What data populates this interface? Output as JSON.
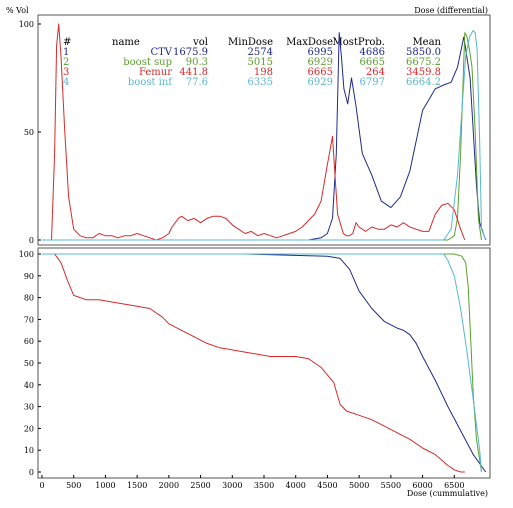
{
  "chart_data": [
    {
      "type": "line",
      "title": "Dose (differential)",
      "ylabel": "% Vol",
      "ylim": [
        0,
        100
      ],
      "xlim": [
        0,
        7000
      ],
      "yticks": [
        0,
        50,
        100
      ],
      "colors": {
        "CTV": "#1f2a8c",
        "boost sup": "#5aa02c",
        "Femur": "#d62a2a",
        "boost inf": "#58b8d0"
      },
      "table": {
        "headers": [
          "#",
          "name",
          "vol",
          "MinDose",
          "MaxDose",
          "MostProb.",
          "Mean"
        ],
        "rows": [
          {
            "num": "1",
            "name": "CTV",
            "vol": "1675.9",
            "min": "2574",
            "max": "6995",
            "mostprob": "4686",
            "mean": "5850.0",
            "color": "#1f2a8c"
          },
          {
            "num": "2",
            "name": "boost sup",
            "vol": "90.3",
            "min": "5015",
            "max": "6929",
            "mostprob": "6665",
            "mean": "6675.2",
            "color": "#5aa02c"
          },
          {
            "num": "3",
            "name": "Femur",
            "vol": "441.8",
            "min": "198",
            "max": "6665",
            "mostprob": "264",
            "mean": "3459.8",
            "color": "#d62a2a"
          },
          {
            "num": "4",
            "name": "boost inf",
            "vol": "77.6",
            "min": "6335",
            "max": "6929",
            "mostprob": "6797",
            "mean": "6664.2",
            "color": "#58b8d0"
          }
        ]
      },
      "series": [
        {
          "name": "CTV",
          "color": "#1f2a8c",
          "x": [
            2574,
            3000,
            4200,
            4400,
            4500,
            4580,
            4640,
            4686,
            4720,
            4760,
            4820,
            4880,
            4950,
            5050,
            5200,
            5350,
            5500,
            5650,
            5800,
            6000,
            6200,
            6350,
            6450,
            6550,
            6650,
            6750,
            6850,
            6900,
            6995
          ],
          "y": [
            0,
            0,
            0,
            1,
            3,
            10,
            40,
            96,
            85,
            70,
            63,
            75,
            62,
            40,
            30,
            18,
            15,
            20,
            32,
            60,
            70,
            72,
            73,
            80,
            94,
            75,
            25,
            8,
            0
          ]
        },
        {
          "name": "boost sup",
          "color": "#5aa02c",
          "x": [
            5015,
            6400,
            6500,
            6550,
            6600,
            6640,
            6665,
            6700,
            6740,
            6780,
            6830,
            6880,
            6929
          ],
          "y": [
            0,
            0,
            2,
            10,
            40,
            75,
            96,
            94,
            88,
            80,
            50,
            10,
            0
          ]
        },
        {
          "name": "Femur",
          "color": "#d62a2a",
          "x": [
            0,
            150,
            198,
            230,
            264,
            300,
            360,
            420,
            500,
            600,
            700,
            800,
            900,
            1000,
            1100,
            1200,
            1300,
            1400,
            1500,
            1600,
            1700,
            1800,
            1900,
            2000,
            2050,
            2100,
            2150,
            2200,
            2300,
            2400,
            2500,
            2600,
            2700,
            2800,
            2900,
            3000,
            3100,
            3200,
            3300,
            3400,
            3500,
            3600,
            3700,
            3800,
            3900,
            4000,
            4100,
            4200,
            4300,
            4400,
            4500,
            4580,
            4620,
            4660,
            4700,
            4750,
            4800,
            4850,
            4900,
            4950,
            5000,
            5100,
            5200,
            5300,
            5400,
            5500,
            5600,
            5700,
            5800,
            5900,
            6000,
            6100,
            6200,
            6300,
            6400,
            6500,
            6600,
            6665
          ],
          "y": [
            0,
            0,
            40,
            90,
            100,
            85,
            50,
            20,
            5,
            2,
            1,
            1,
            3,
            2,
            2,
            1,
            2,
            2,
            3,
            2,
            1,
            0,
            1,
            3,
            6,
            8,
            10,
            11,
            9,
            10,
            8,
            10,
            11,
            11,
            10,
            7,
            5,
            3,
            4,
            2,
            3,
            2,
            1,
            2,
            3,
            4,
            6,
            9,
            12,
            18,
            35,
            48,
            30,
            12,
            8,
            3,
            2,
            2,
            3,
            8,
            6,
            4,
            6,
            5,
            5,
            7,
            6,
            8,
            6,
            5,
            4,
            4,
            12,
            16,
            17,
            14,
            5,
            0
          ]
        },
        {
          "name": "boost inf",
          "color": "#58b8d0",
          "x": [
            0,
            6335,
            6450,
            6550,
            6620,
            6680,
            6740,
            6797,
            6830,
            6860,
            6900,
            6929,
            7000
          ],
          "y": [
            0,
            0,
            5,
            30,
            60,
            85,
            94,
            97,
            96,
            88,
            45,
            5,
            0
          ]
        }
      ]
    },
    {
      "type": "line",
      "xlabel": "Dose (cummulative)",
      "ylim": [
        0,
        100
      ],
      "xlim": [
        0,
        7000
      ],
      "xticks": [
        0,
        500,
        1000,
        1500,
        2000,
        2500,
        3000,
        3500,
        4000,
        4500,
        5000,
        5500,
        6000,
        6500
      ],
      "yticks": [
        0,
        10,
        20,
        30,
        40,
        50,
        60,
        70,
        80,
        90,
        100
      ],
      "series": [
        {
          "name": "CTV",
          "color": "#1f2a8c",
          "x": [
            0,
            3200,
            4500,
            4700,
            4850,
            5000,
            5200,
            5400,
            5600,
            5700,
            5800,
            5900,
            6000,
            6200,
            6400,
            6600,
            6800,
            6995
          ],
          "y": [
            100,
            100,
            99,
            98,
            93,
            83,
            75,
            69,
            66,
            65,
            63,
            59,
            53,
            42,
            30,
            19,
            8,
            0
          ]
        },
        {
          "name": "boost sup",
          "color": "#5aa02c",
          "x": [
            0,
            6500,
            6620,
            6680,
            6720,
            6760,
            6800,
            6850,
            6929
          ],
          "y": [
            100,
            100,
            99,
            96,
            85,
            60,
            35,
            15,
            0
          ]
        },
        {
          "name": "Femur",
          "color": "#d62a2a",
          "x": [
            0,
            198,
            300,
            400,
            500,
            700,
            900,
            1100,
            1300,
            1500,
            1700,
            1800,
            1900,
            2000,
            2200,
            2400,
            2600,
            2800,
            3000,
            3200,
            3400,
            3600,
            3800,
            4000,
            4200,
            4400,
            4600,
            4700,
            4800,
            5000,
            5200,
            5400,
            5600,
            5800,
            6000,
            6200,
            6400,
            6500,
            6600,
            6665
          ],
          "y": [
            100,
            100,
            96,
            88,
            81,
            79,
            79,
            78,
            77,
            76,
            75,
            73,
            71,
            68,
            65,
            62,
            59,
            57,
            56,
            55,
            54,
            53,
            53,
            53,
            52,
            48,
            41,
            31,
            28,
            26,
            24,
            21,
            18,
            15,
            11,
            8,
            3,
            1,
            0,
            0
          ]
        },
        {
          "name": "boost inf",
          "color": "#58b8d0",
          "x": [
            0,
            6335,
            6400,
            6500,
            6600,
            6700,
            6800,
            6900,
            6929
          ],
          "y": [
            100,
            100,
            97,
            90,
            75,
            55,
            33,
            10,
            0
          ]
        }
      ]
    }
  ]
}
